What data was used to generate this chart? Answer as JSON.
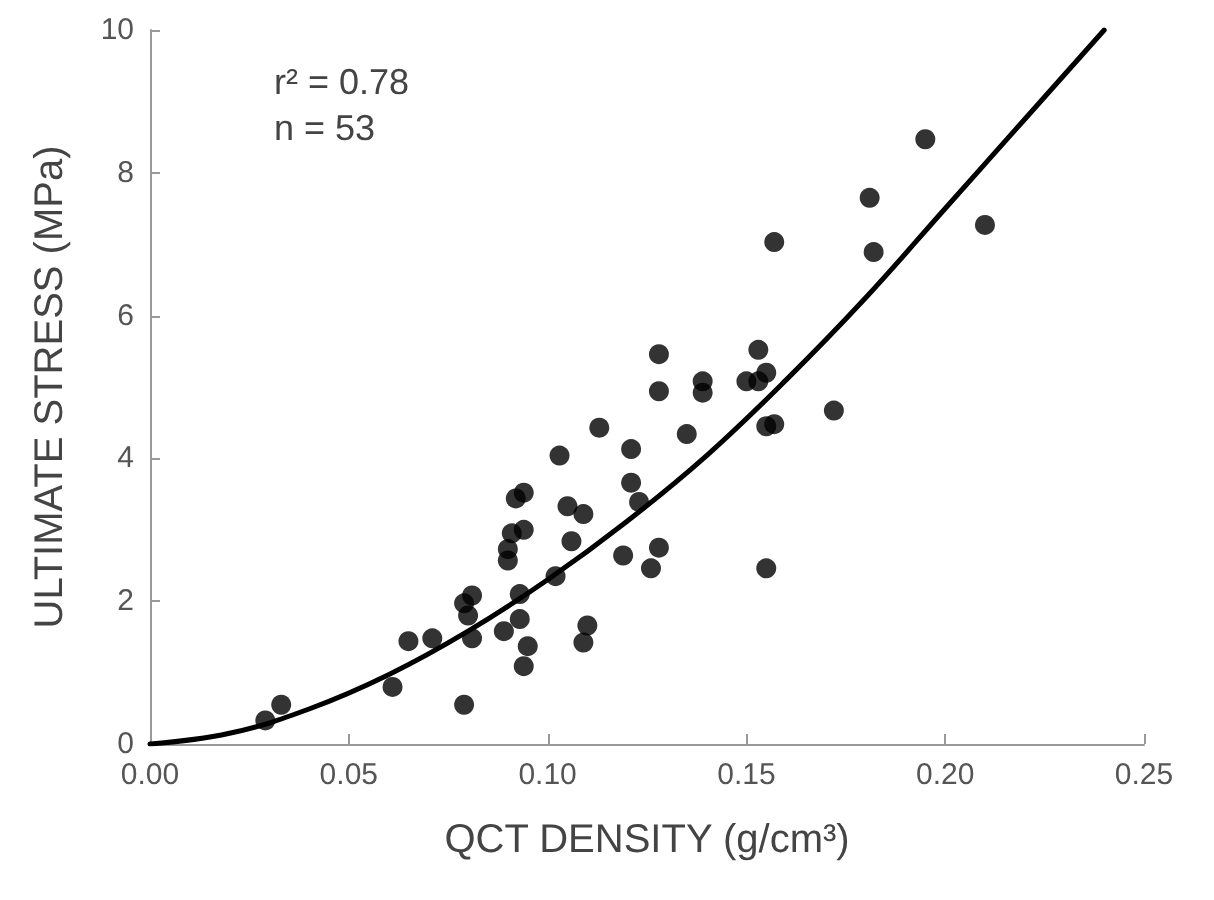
{
  "chart_data": {
    "type": "scatter",
    "xlabel": "QCT DENSITY (g/cm³)",
    "ylabel": "ULTIMATE STRESS (MPa)",
    "annotations": [
      "r² = 0.78",
      "n = 53"
    ],
    "xlim": [
      0,
      0.25
    ],
    "xticks": [
      {
        "value": 0,
        "label": "0.00"
      },
      {
        "value": 0.05,
        "label": "0.05"
      },
      {
        "value": 0.1,
        "label": "0.10"
      },
      {
        "value": 0.15,
        "label": "0.15"
      },
      {
        "value": 0.2,
        "label": "0.20"
      },
      {
        "value": 0.25,
        "label": "0.25"
      }
    ],
    "ylim": [
      0,
      10
    ],
    "yticks": [
      0,
      2,
      4,
      6,
      8,
      10
    ],
    "grid": false,
    "marker": "circle",
    "series": [
      {
        "color": "#000000",
        "x": [
          0.029,
          0.033,
          0.061,
          0.065,
          0.071,
          0.079,
          0.079,
          0.081,
          0.081,
          0.08,
          0.089,
          0.09,
          0.09,
          0.091,
          0.094,
          0.092,
          0.094,
          0.093,
          0.093,
          0.095,
          0.094,
          0.102,
          0.103,
          0.105,
          0.109,
          0.106,
          0.109,
          0.11,
          0.113,
          0.119,
          0.121,
          0.121,
          0.123,
          0.126,
          0.128,
          0.128,
          0.128,
          0.135,
          0.139,
          0.139,
          0.15,
          0.153,
          0.153,
          0.155,
          0.155,
          0.157,
          0.157,
          0.172,
          0.181,
          0.182,
          0.195,
          0.21,
          0.155
        ],
        "values": [
          0.33,
          0.55,
          0.8,
          1.44,
          1.48,
          0.55,
          1.97,
          2.08,
          1.48,
          1.8,
          1.58,
          2.57,
          2.73,
          2.95,
          3.0,
          3.44,
          3.52,
          1.75,
          2.1,
          1.37,
          1.09,
          2.35,
          4.04,
          3.33,
          3.22,
          2.84,
          1.42,
          1.66,
          4.43,
          2.64,
          4.13,
          3.66,
          3.39,
          2.46,
          2.75,
          5.46,
          4.94,
          4.34,
          5.08,
          4.92,
          5.08,
          5.52,
          5.08,
          2.46,
          4.45,
          4.48,
          7.03,
          4.67,
          7.65,
          6.89,
          8.47,
          7.27,
          5.2
        ]
      },
      {
        "type": "line",
        "color": "#000000",
        "marker": "none",
        "x": [
          0,
          0.02,
          0.04,
          0.06,
          0.08,
          0.1,
          0.12,
          0.14,
          0.16,
          0.18,
          0.2,
          0.22,
          0.24
        ],
        "values": [
          0,
          0.15,
          0.49,
          0.97,
          1.58,
          2.3,
          3.12,
          4.04,
          5.1,
          6.25,
          7.5,
          8.75,
          10.0
        ]
      }
    ]
  }
}
